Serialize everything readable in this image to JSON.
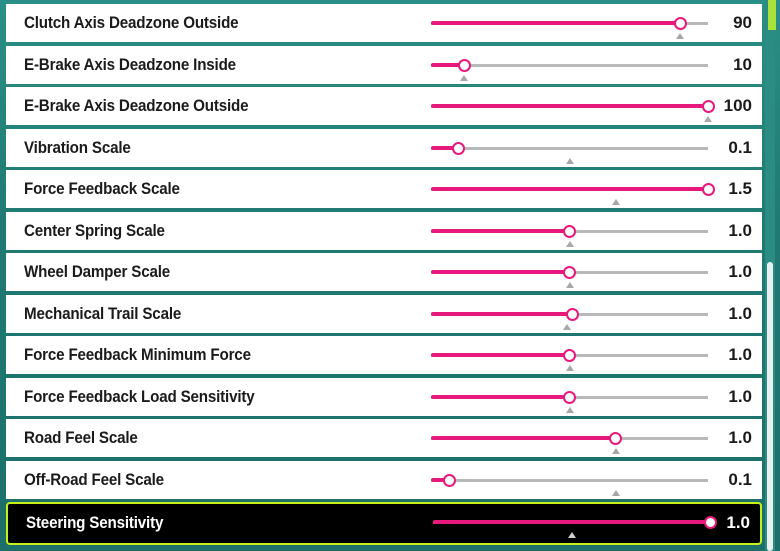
{
  "colors": {
    "accent": "#e8197d",
    "selected_border": "#c6f01b",
    "background": "#1f7a73"
  },
  "settings": [
    {
      "label": "Clutch Axis Deadzone Outside",
      "value": "90",
      "fill": 0.9,
      "default": 0.9
    },
    {
      "label": "E-Brake Axis Deadzone Inside",
      "value": "10",
      "fill": 0.12,
      "default": 0.12
    },
    {
      "label": "E-Brake Axis Deadzone Outside",
      "value": "100",
      "fill": 1.0,
      "default": 1.0
    },
    {
      "label": "Vibration Scale",
      "value": "0.1",
      "fill": 0.1,
      "default": 0.5
    },
    {
      "label": "Force Feedback Scale",
      "value": "1.5",
      "fill": 1.0,
      "default": 0.667
    },
    {
      "label": "Center Spring Scale",
      "value": "1.0",
      "fill": 0.5,
      "default": 0.5
    },
    {
      "label": "Wheel Damper Scale",
      "value": "1.0",
      "fill": 0.5,
      "default": 0.5
    },
    {
      "label": "Mechanical Trail Scale",
      "value": "1.0",
      "fill": 0.51,
      "default": 0.49
    },
    {
      "label": "Force Feedback Minimum Force",
      "value": "1.0",
      "fill": 0.5,
      "default": 0.5
    },
    {
      "label": "Force Feedback Load Sensitivity",
      "value": "1.0",
      "fill": 0.5,
      "default": 0.5
    },
    {
      "label": "Road Feel Scale",
      "value": "1.0",
      "fill": 0.667,
      "default": 0.667
    },
    {
      "label": "Off-Road Feel Scale",
      "value": "0.1",
      "fill": 0.067,
      "default": 0.667
    },
    {
      "label": "Steering Sensitivity",
      "value": "1.0",
      "fill": 1.0,
      "default": 0.5,
      "selected": true
    }
  ]
}
